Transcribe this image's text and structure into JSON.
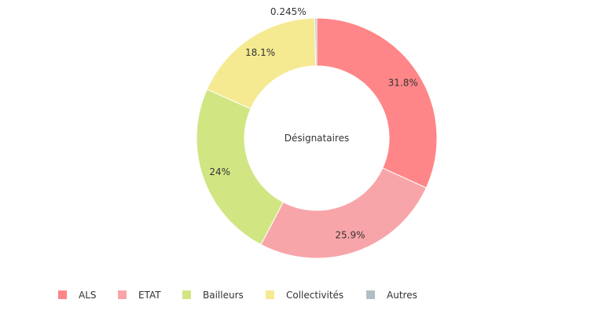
{
  "chart_data": {
    "type": "pie",
    "center_label": "Désignataires",
    "legend_position": "bottom",
    "slices": [
      {
        "name": "ALS",
        "value": 31.8,
        "label": "31.8%",
        "color": "#ff8688"
      },
      {
        "name": "ETAT",
        "value": 25.9,
        "label": "25.9%",
        "color": "#f8a5a9"
      },
      {
        "name": "Bailleurs",
        "value": 24,
        "label": "24%",
        "color": "#d1e683"
      },
      {
        "name": "Collectivités",
        "value": 18.1,
        "label": "18.1%",
        "color": "#f5ea92"
      },
      {
        "name": "Autres",
        "value": 0.245,
        "label": "0.245%",
        "color": "#b0bec5"
      }
    ]
  }
}
